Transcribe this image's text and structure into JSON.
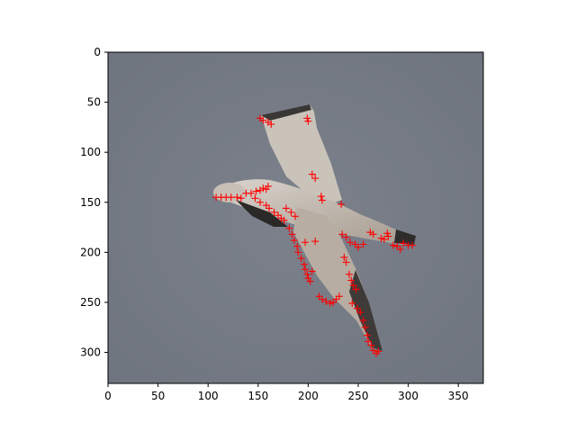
{
  "chart_data": {
    "type": "scatter",
    "title": "",
    "xlabel": "",
    "ylabel": "",
    "xlim": [
      0,
      375
    ],
    "ylim": [
      331,
      0
    ],
    "y_axis_inverted": true,
    "grid": false,
    "background": "image of a gull in flight against a grey sky",
    "x_ticks": [
      "0",
      "50",
      "100",
      "150",
      "200",
      "250",
      "300",
      "350"
    ],
    "y_ticks": [
      "0",
      "50",
      "100",
      "150",
      "200",
      "250",
      "300"
    ],
    "x_tick_values": [
      0,
      50,
      100,
      150,
      200,
      250,
      300,
      350
    ],
    "y_tick_values": [
      0,
      50,
      100,
      150,
      200,
      250,
      300
    ],
    "marker": "+",
    "marker_color": "#ff0000",
    "series": [
      {
        "points": [
          [
            152,
            66
          ],
          [
            155,
            68
          ],
          [
            160,
            70
          ],
          [
            163,
            72
          ],
          [
            199,
            66
          ],
          [
            200,
            69
          ],
          [
            204,
            122
          ],
          [
            207,
            126
          ],
          [
            213,
            144
          ],
          [
            214,
            148
          ],
          [
            108,
            145
          ],
          [
            113,
            145
          ],
          [
            118,
            145
          ],
          [
            123,
            145
          ],
          [
            129,
            145
          ],
          [
            133,
            146
          ],
          [
            138,
            141
          ],
          [
            143,
            141
          ],
          [
            148,
            139
          ],
          [
            152,
            138
          ],
          [
            155,
            136
          ],
          [
            158,
            137
          ],
          [
            160,
            134
          ],
          [
            147,
            146
          ],
          [
            152,
            150
          ],
          [
            158,
            153
          ],
          [
            161,
            156
          ],
          [
            166,
            160
          ],
          [
            170,
            163
          ],
          [
            173,
            166
          ],
          [
            176,
            168
          ],
          [
            178,
            156
          ],
          [
            183,
            160
          ],
          [
            187,
            164
          ],
          [
            181,
            176
          ],
          [
            184,
            182
          ],
          [
            186,
            188
          ],
          [
            189,
            194
          ],
          [
            190,
            200
          ],
          [
            193,
            206
          ],
          [
            196,
            212
          ],
          [
            197,
            217
          ],
          [
            199,
            222
          ],
          [
            200,
            226
          ],
          [
            202,
            229
          ],
          [
            204,
            219
          ],
          [
            197,
            190
          ],
          [
            207,
            189
          ],
          [
            211,
            244
          ],
          [
            214,
            247
          ],
          [
            218,
            249
          ],
          [
            222,
            251
          ],
          [
            225,
            250
          ],
          [
            228,
            247
          ],
          [
            231,
            244
          ],
          [
            233,
            152
          ],
          [
            234,
            182
          ],
          [
            238,
            185
          ],
          [
            242,
            190
          ],
          [
            247,
            192
          ],
          [
            250,
            195
          ],
          [
            255,
            192
          ],
          [
            236,
            205
          ],
          [
            238,
            210
          ],
          [
            241,
            222
          ],
          [
            243,
            228
          ],
          [
            245,
            233
          ],
          [
            248,
            237
          ],
          [
            244,
            251
          ],
          [
            249,
            256
          ],
          [
            252,
            260
          ],
          [
            255,
            268
          ],
          [
            257,
            275
          ],
          [
            259,
            283
          ],
          [
            260,
            289
          ],
          [
            263,
            293
          ],
          [
            265,
            298
          ],
          [
            268,
            301
          ],
          [
            270,
            299
          ],
          [
            262,
            180
          ],
          [
            265,
            182
          ],
          [
            273,
            186
          ],
          [
            276,
            187
          ],
          [
            279,
            181
          ],
          [
            280,
            184
          ],
          [
            285,
            193
          ],
          [
            289,
            194
          ],
          [
            292,
            197
          ],
          [
            295,
            191
          ],
          [
            300,
            193
          ],
          [
            304,
            193
          ]
        ]
      }
    ]
  }
}
